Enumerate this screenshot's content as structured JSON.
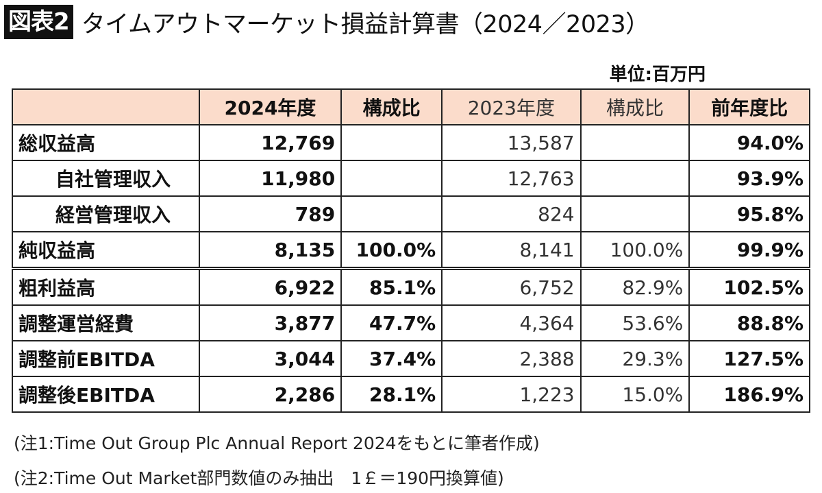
{
  "title": {
    "badge": "図表2",
    "text": "タイムアウトマーケット損益計算書（2024／2023）"
  },
  "unit": "単位:百万円",
  "table": {
    "headers": [
      "",
      "2024年度",
      "構成比",
      "2023年度",
      "構成比",
      "前年度比"
    ],
    "rows": [
      {
        "label": "総収益高",
        "v2024": "12,769",
        "r2024": "",
        "v2023": "13,587",
        "r2023": "",
        "yoy": "94.0%"
      },
      {
        "label": "自社管理収入",
        "v2024": "11,980",
        "r2024": "",
        "v2023": "12,763",
        "r2023": "",
        "yoy": "93.9%"
      },
      {
        "label": "経営管理収入",
        "v2024": "789",
        "r2024": "",
        "v2023": "824",
        "r2023": "",
        "yoy": "95.8%"
      },
      {
        "label": "純収益高",
        "v2024": "8,135",
        "r2024": "100.0%",
        "v2023": "8,141",
        "r2023": "100.0%",
        "yoy": "99.9%"
      },
      {
        "label": "粗利益高",
        "v2024": "6,922",
        "r2024": "85.1%",
        "v2023": "6,752",
        "r2023": "82.9%",
        "yoy": "102.5%"
      },
      {
        "label": "調整運営経費",
        "v2024": "3,877",
        "r2024": "47.7%",
        "v2023": "4,364",
        "r2023": "53.6%",
        "yoy": "88.8%"
      },
      {
        "label": "調整前EBITDA",
        "v2024": "3,044",
        "r2024": "37.4%",
        "v2023": "2,388",
        "r2023": "29.3%",
        "yoy": "127.5%"
      },
      {
        "label": "調整後EBITDA",
        "v2024": "2,286",
        "r2024": "28.1%",
        "v2023": "1,223",
        "r2023": "15.0%",
        "yoy": "186.9%"
      }
    ]
  },
  "notes": [
    "(注1:Time Out Group Plc Annual Report 2024をもとに筆者作成)",
    "(注2:Time Out Market部門数値のみ抽出　1￡＝190円換算値)"
  ],
  "colors": {
    "header_bg": "#fbdccb",
    "badge_bg": "#111111"
  }
}
